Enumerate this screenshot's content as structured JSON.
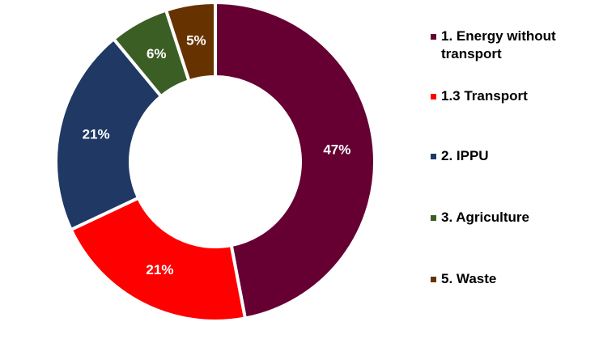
{
  "chart_data": {
    "type": "donut",
    "categories": [
      "1. Energy without transport",
      "1.3 Transport",
      "2. IPPU",
      "3. Agriculture",
      "5. Waste"
    ],
    "values": [
      47,
      21,
      21,
      6,
      5
    ],
    "value_labels": [
      "47%",
      "21%",
      "21%",
      "6%",
      "5%"
    ],
    "colors": [
      "#660033",
      "#ff0000",
      "#1f3864",
      "#3b5e24",
      "#663300"
    ],
    "legend": "right"
  }
}
